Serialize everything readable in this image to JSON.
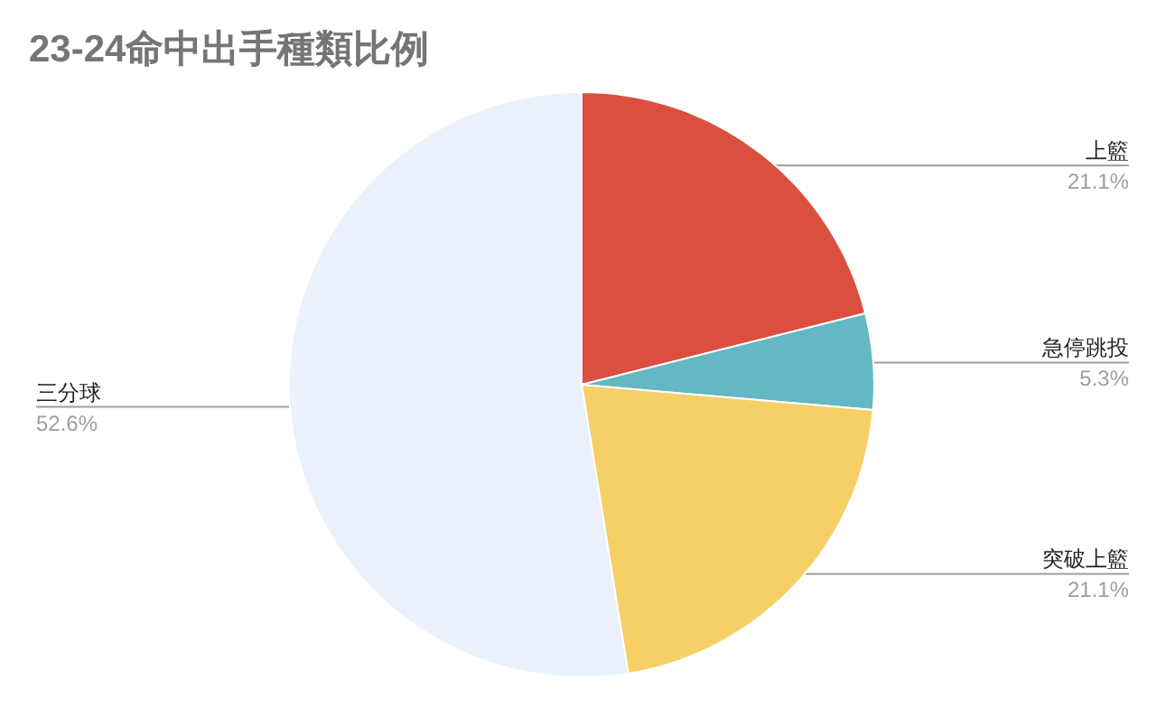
{
  "chart_data": {
    "type": "pie",
    "title": "23-24命中出手種類比例",
    "categories": [
      "上籃",
      "急停跳投",
      "突破上籃",
      "三分球"
    ],
    "values": [
      21.1,
      5.3,
      21.1,
      52.6
    ],
    "colors": [
      "#db4f3f",
      "#63b8c3",
      "#f6cf66",
      "#eaf1fb"
    ],
    "value_labels": [
      "21.1%",
      "5.3%",
      "21.1%",
      "52.6%"
    ]
  }
}
